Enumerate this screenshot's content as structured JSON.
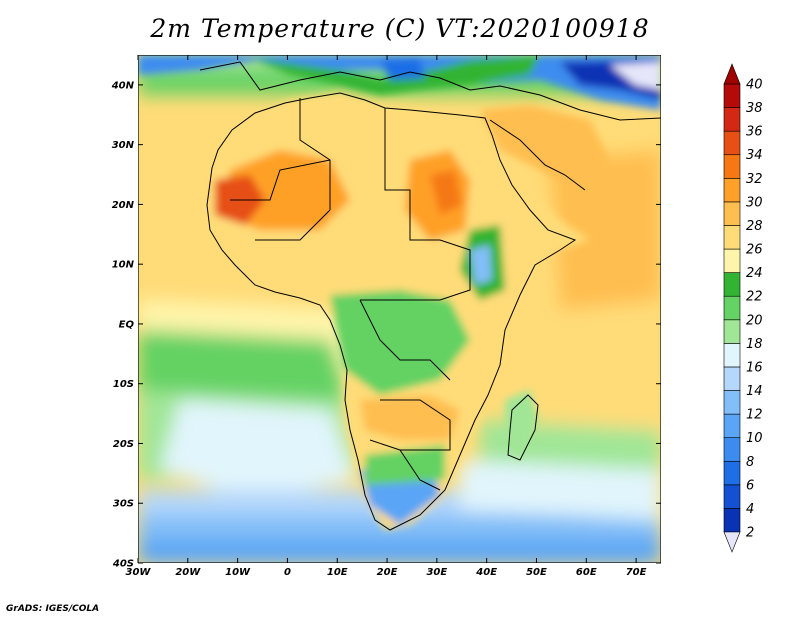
{
  "title": "2m Temperature (C) VT:2020100918",
  "credit": "GrADS: IGES/COLA",
  "map": {
    "lon_range": [
      -30,
      75
    ],
    "lat_range": [
      -40,
      45
    ],
    "lon_ticks": [
      {
        "value": -30,
        "label": "30W"
      },
      {
        "value": -20,
        "label": "20W"
      },
      {
        "value": -10,
        "label": "10W"
      },
      {
        "value": 0,
        "label": "0"
      },
      {
        "value": 10,
        "label": "10E"
      },
      {
        "value": 20,
        "label": "20E"
      },
      {
        "value": 30,
        "label": "30E"
      },
      {
        "value": 40,
        "label": "40E"
      },
      {
        "value": 50,
        "label": "50E"
      },
      {
        "value": 60,
        "label": "60E"
      },
      {
        "value": 70,
        "label": "70E"
      }
    ],
    "lat_ticks": [
      {
        "value": 40,
        "label": "40N"
      },
      {
        "value": 30,
        "label": "30N"
      },
      {
        "value": 20,
        "label": "20N"
      },
      {
        "value": 10,
        "label": "10N"
      },
      {
        "value": 0,
        "label": "EQ"
      },
      {
        "value": -10,
        "label": "10S"
      },
      {
        "value": -20,
        "label": "20S"
      },
      {
        "value": -30,
        "label": "30S"
      },
      {
        "value": -40,
        "label": "40S"
      }
    ]
  },
  "colorbar": {
    "levels": [
      {
        "label": "2",
        "color": "#0d1770"
      },
      {
        "label": "4",
        "color": "#0a32b4"
      },
      {
        "label": "6",
        "color": "#1450d2"
      },
      {
        "label": "8",
        "color": "#1e6ee6"
      },
      {
        "label": "10",
        "color": "#3c8cf0"
      },
      {
        "label": "12",
        "color": "#5aa5f5"
      },
      {
        "label": "14",
        "color": "#82bef8"
      },
      {
        "label": "16",
        "color": "#b4d7fb"
      },
      {
        "label": "18",
        "color": "#e1f5fc"
      },
      {
        "label": "20",
        "color": "#a0e696"
      },
      {
        "label": "22",
        "color": "#64d264"
      },
      {
        "label": "24",
        "color": "#32b432"
      },
      {
        "label": "26",
        "color": "#fff5aa"
      },
      {
        "label": "28",
        "color": "#ffdc78"
      },
      {
        "label": "30",
        "color": "#ffbe50"
      },
      {
        "label": "32",
        "color": "#ffa028"
      },
      {
        "label": "34",
        "color": "#f57814"
      },
      {
        "label": "36",
        "color": "#e65014"
      },
      {
        "label": "38",
        "color": "#d22814"
      },
      {
        "label": "40",
        "color": "#b40a0a"
      }
    ],
    "under_color": "#e6e6fa",
    "over_color": "#a00000"
  }
}
